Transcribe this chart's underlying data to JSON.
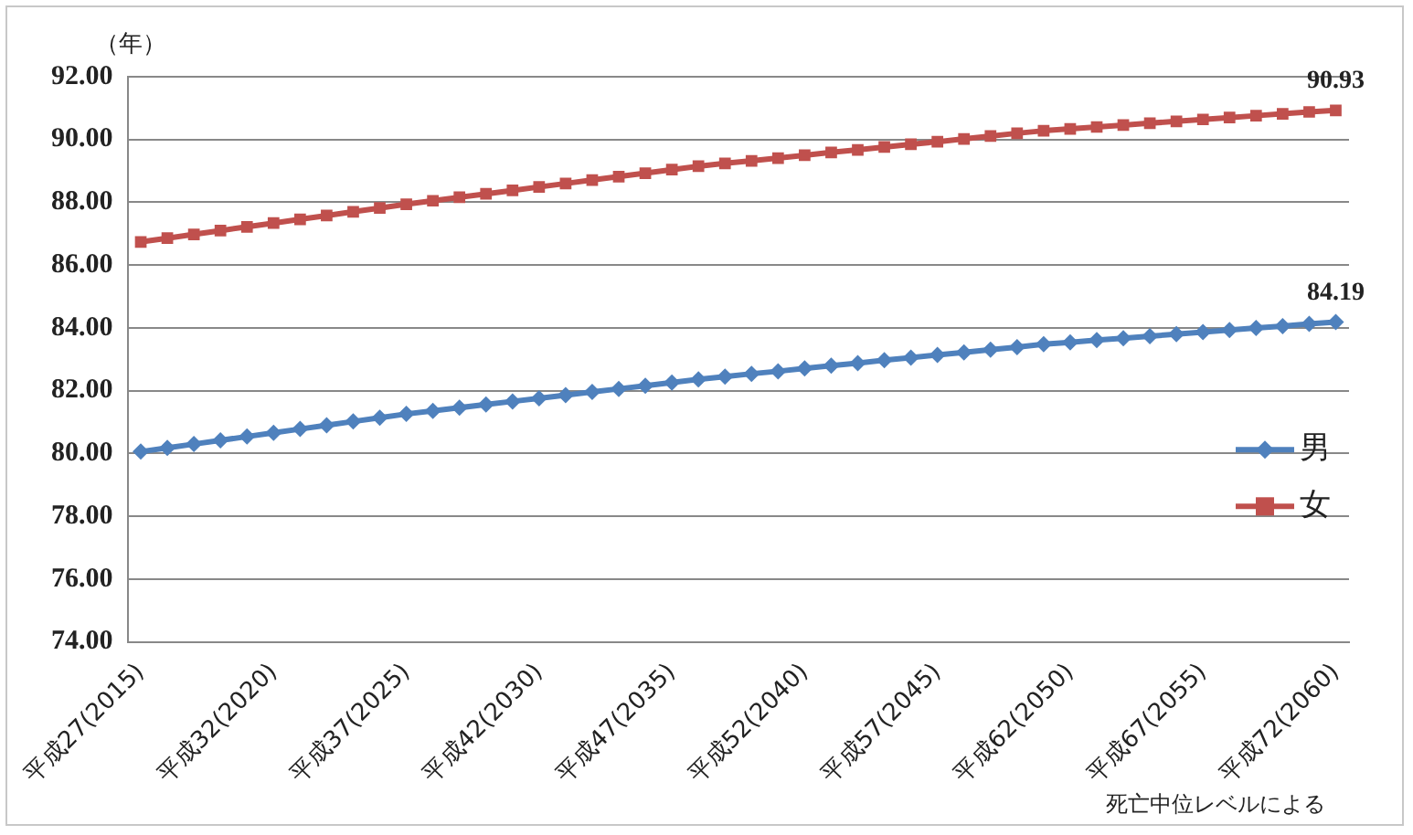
{
  "chart_data": {
    "type": "line",
    "ylabel": "（年）",
    "categories": [
      "平成27(2015)",
      null,
      null,
      null,
      null,
      "平成32(2020)",
      null,
      null,
      null,
      null,
      "平成37(2025)",
      null,
      null,
      null,
      null,
      "平成42(2030)",
      null,
      null,
      null,
      null,
      "平成47(2035)",
      null,
      null,
      null,
      null,
      "平成52(2040)",
      null,
      null,
      null,
      null,
      "平成57(2045)",
      null,
      null,
      null,
      null,
      "平成62(2050)",
      null,
      null,
      null,
      null,
      "平成67(2055)",
      null,
      null,
      null,
      null,
      "平成72(2060)"
    ],
    "series": [
      {
        "name": "男",
        "color": "#4f81bd",
        "marker": "diamond",
        "values": [
          80.06,
          80.18,
          80.3,
          80.42,
          80.54,
          80.66,
          80.78,
          80.9,
          81.02,
          81.14,
          81.26,
          81.36,
          81.46,
          81.56,
          81.66,
          81.76,
          81.86,
          81.96,
          82.06,
          82.16,
          82.26,
          82.36,
          82.45,
          82.54,
          82.62,
          82.71,
          82.8,
          82.88,
          82.97,
          83.05,
          83.14,
          83.22,
          83.31,
          83.39,
          83.48,
          83.54,
          83.61,
          83.67,
          83.74,
          83.8,
          83.87,
          83.93,
          84.0,
          84.06,
          84.13,
          84.19
        ],
        "value_labels": [
          null,
          null,
          null,
          null,
          null,
          null,
          null,
          null,
          null,
          null,
          null,
          null,
          null,
          null,
          null,
          null,
          null,
          null,
          null,
          null,
          null,
          null,
          null,
          null,
          null,
          null,
          null,
          null,
          null,
          null,
          null,
          null,
          null,
          null,
          null,
          null,
          null,
          null,
          null,
          null,
          null,
          null,
          null,
          null,
          null,
          "84.19"
        ]
      },
      {
        "name": "女",
        "color": "#c0504d",
        "marker": "square",
        "values": [
          86.74,
          86.86,
          86.98,
          87.1,
          87.22,
          87.34,
          87.46,
          87.58,
          87.7,
          87.82,
          87.94,
          88.05,
          88.16,
          88.27,
          88.38,
          88.49,
          88.6,
          88.71,
          88.82,
          88.93,
          89.04,
          89.15,
          89.24,
          89.32,
          89.41,
          89.5,
          89.59,
          89.67,
          89.76,
          89.85,
          89.93,
          90.02,
          90.11,
          90.2,
          90.28,
          90.34,
          90.4,
          90.46,
          90.52,
          90.58,
          90.64,
          90.7,
          90.76,
          90.82,
          90.88,
          90.93
        ],
        "value_labels": [
          null,
          null,
          null,
          null,
          null,
          null,
          null,
          null,
          null,
          null,
          null,
          null,
          null,
          null,
          null,
          null,
          null,
          null,
          null,
          null,
          null,
          null,
          null,
          null,
          null,
          null,
          null,
          null,
          null,
          null,
          null,
          null,
          null,
          null,
          null,
          null,
          null,
          null,
          null,
          null,
          null,
          null,
          null,
          null,
          null,
          "90.93"
        ]
      }
    ],
    "ylim": [
      74,
      92
    ],
    "yticks": [
      {
        "value": 74,
        "label": "74.00"
      },
      {
        "value": 76,
        "label": "76.00"
      },
      {
        "value": 78,
        "label": "78.00"
      },
      {
        "value": 80,
        "label": "80.00"
      },
      {
        "value": 82,
        "label": "82.00"
      },
      {
        "value": 84,
        "label": "84.00"
      },
      {
        "value": 86,
        "label": "86.00"
      },
      {
        "value": 88,
        "label": "88.00"
      },
      {
        "value": 90,
        "label": "90.00"
      },
      {
        "value": 92,
        "label": "92.00"
      }
    ],
    "grid": "y",
    "legend": "right",
    "line_style": "solid",
    "annotations": [
      "死亡中位レベルによる"
    ]
  }
}
